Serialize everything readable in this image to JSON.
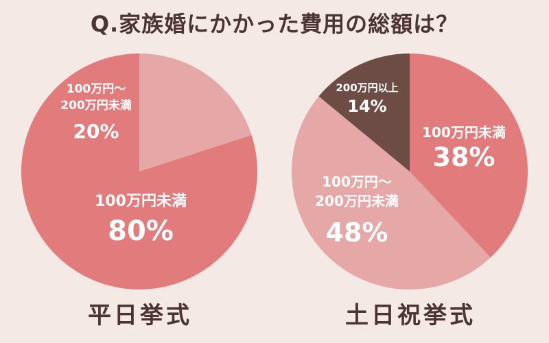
{
  "title": "Q.家族婚にかかった費用の総額は？",
  "colors": {
    "dark": "#6e4c46",
    "mid": "#e27b7b",
    "light": "#e6a7a7",
    "text": "#4a3530",
    "background": "#f5e9e6"
  },
  "chart_data": [
    {
      "type": "pie",
      "caption": "平日挙式",
      "slices": [
        {
          "label": "100万円〜200万円未満",
          "label_lines": [
            "100万円〜",
            "200万円未満"
          ],
          "value": 20,
          "display": "20%",
          "color": "#e6a7a7"
        },
        {
          "label": "100万円未満",
          "label_lines": [
            "100万円未満"
          ],
          "value": 80,
          "display": "80%",
          "color": "#e27b7b"
        }
      ]
    },
    {
      "type": "pie",
      "caption": "土日祝挙式",
      "slices": [
        {
          "label": "100万円未満",
          "label_lines": [
            "100万円未満"
          ],
          "value": 38,
          "display": "38%",
          "color": "#e27b7b"
        },
        {
          "label": "100万円〜200万円未満",
          "label_lines": [
            "100万円〜",
            "200万円未満"
          ],
          "value": 48,
          "display": "48%",
          "color": "#e6a7a7"
        },
        {
          "label": "200万円以上",
          "label_lines": [
            "200万円以上"
          ],
          "value": 14,
          "display": "14%",
          "color": "#6e4c46"
        }
      ]
    }
  ]
}
